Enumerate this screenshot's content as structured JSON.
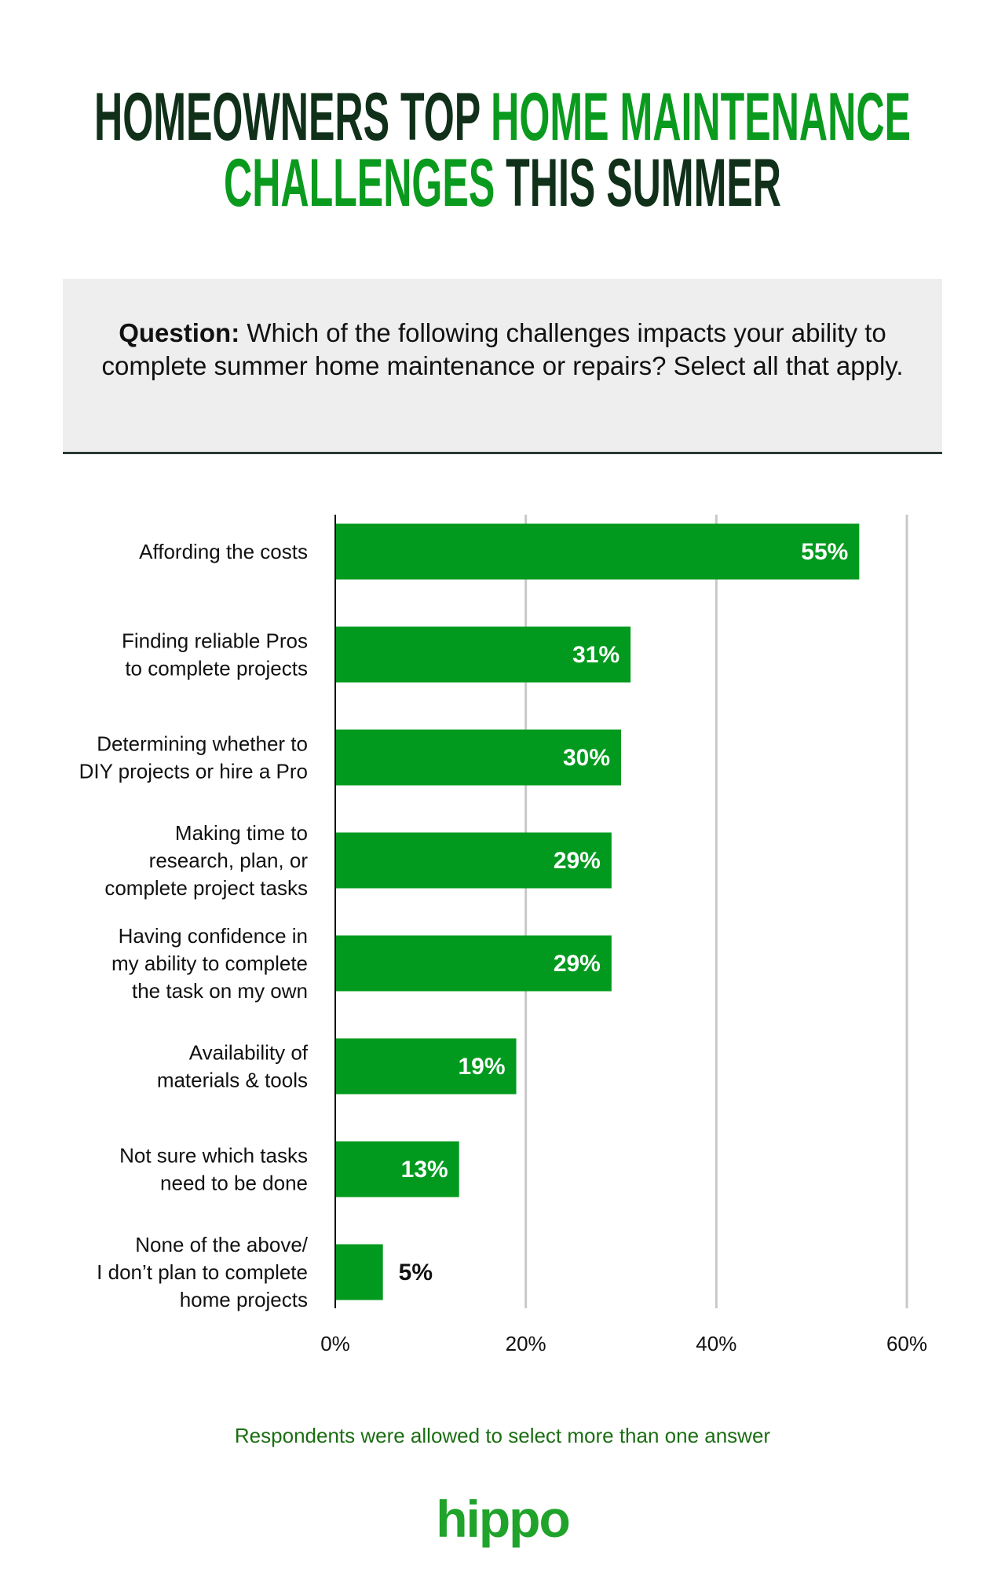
{
  "title": {
    "line1_dark": "HOMEOWNERS TOP ",
    "line1_green": "HOME MAINTENANCE",
    "line2_green": "CHALLENGES",
    "line2_dark": " THIS SUMMER"
  },
  "question": {
    "label": "Question:",
    "text": " Which of the following challenges impacts your ability to complete summer home maintenance or repairs? Select all that apply."
  },
  "colors": {
    "bar": "#029a1e",
    "dark": "#10301a",
    "grid": "#c8c8c8"
  },
  "chart_data": {
    "type": "bar",
    "orientation": "horizontal",
    "categories": [
      [
        "Affording the costs"
      ],
      [
        "Finding reliable Pros",
        "to complete projects"
      ],
      [
        "Determining whether to",
        "DIY projects or hire a Pro"
      ],
      [
        "Making time to",
        "research, plan, or",
        "complete project tasks"
      ],
      [
        "Having confidence in",
        "my ability to complete",
        "the task on my own"
      ],
      [
        "Availability of",
        "materials & tools"
      ],
      [
        "Not sure which tasks",
        "need to be done"
      ],
      [
        "None of the above/",
        "I don’t plan to complete",
        "home projects"
      ]
    ],
    "values": [
      55,
      31,
      30,
      29,
      29,
      19,
      13,
      5
    ],
    "value_labels": [
      "55%",
      "31%",
      "30%",
      "29%",
      "29%",
      "19%",
      "13%",
      "5%"
    ],
    "xlim": [
      0,
      60
    ],
    "xticks": [
      0,
      20,
      40,
      60
    ],
    "xtick_labels": [
      "0%",
      "20%",
      "40%",
      "60%"
    ],
    "grid": true,
    "xlabel": "",
    "ylabel": ""
  },
  "footnote": "Respondents were allowed to select more than one answer",
  "logo": "hippo"
}
